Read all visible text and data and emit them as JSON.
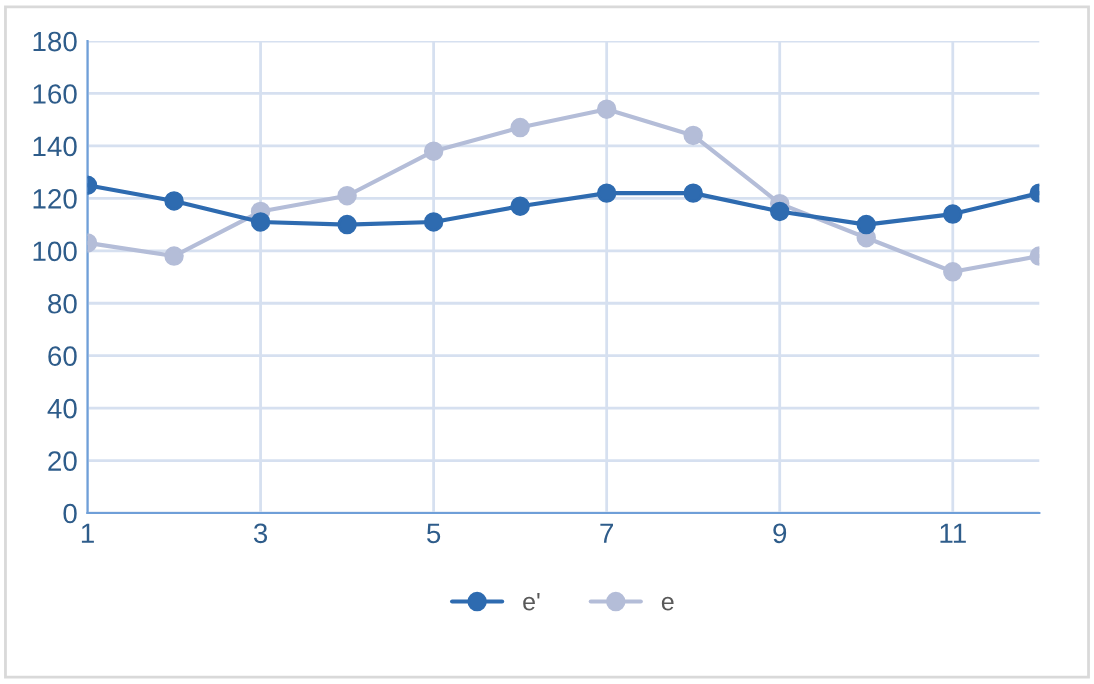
{
  "chart_data": {
    "type": "line",
    "x": [
      1,
      2,
      3,
      4,
      5,
      6,
      7,
      8,
      9,
      10,
      11,
      12
    ],
    "series": [
      {
        "name": "e'",
        "color": "#2e6bb0",
        "values": [
          125,
          119,
          111,
          110,
          111,
          117,
          122,
          122,
          115,
          110,
          114,
          122
        ]
      },
      {
        "name": "e",
        "color": "#b4bdd8",
        "values": [
          103,
          98,
          115,
          121,
          138,
          147,
          154,
          144,
          118,
          105,
          92,
          98
        ]
      }
    ],
    "xlim": [
      1,
      12
    ],
    "xticks": [
      1,
      3,
      5,
      7,
      9,
      11
    ],
    "ylim": [
      0,
      180
    ],
    "yticks": [
      0,
      20,
      40,
      60,
      80,
      100,
      120,
      140,
      160,
      180
    ],
    "grid": true,
    "legend": "bottom",
    "marker": "circle",
    "line_style": "solid"
  }
}
